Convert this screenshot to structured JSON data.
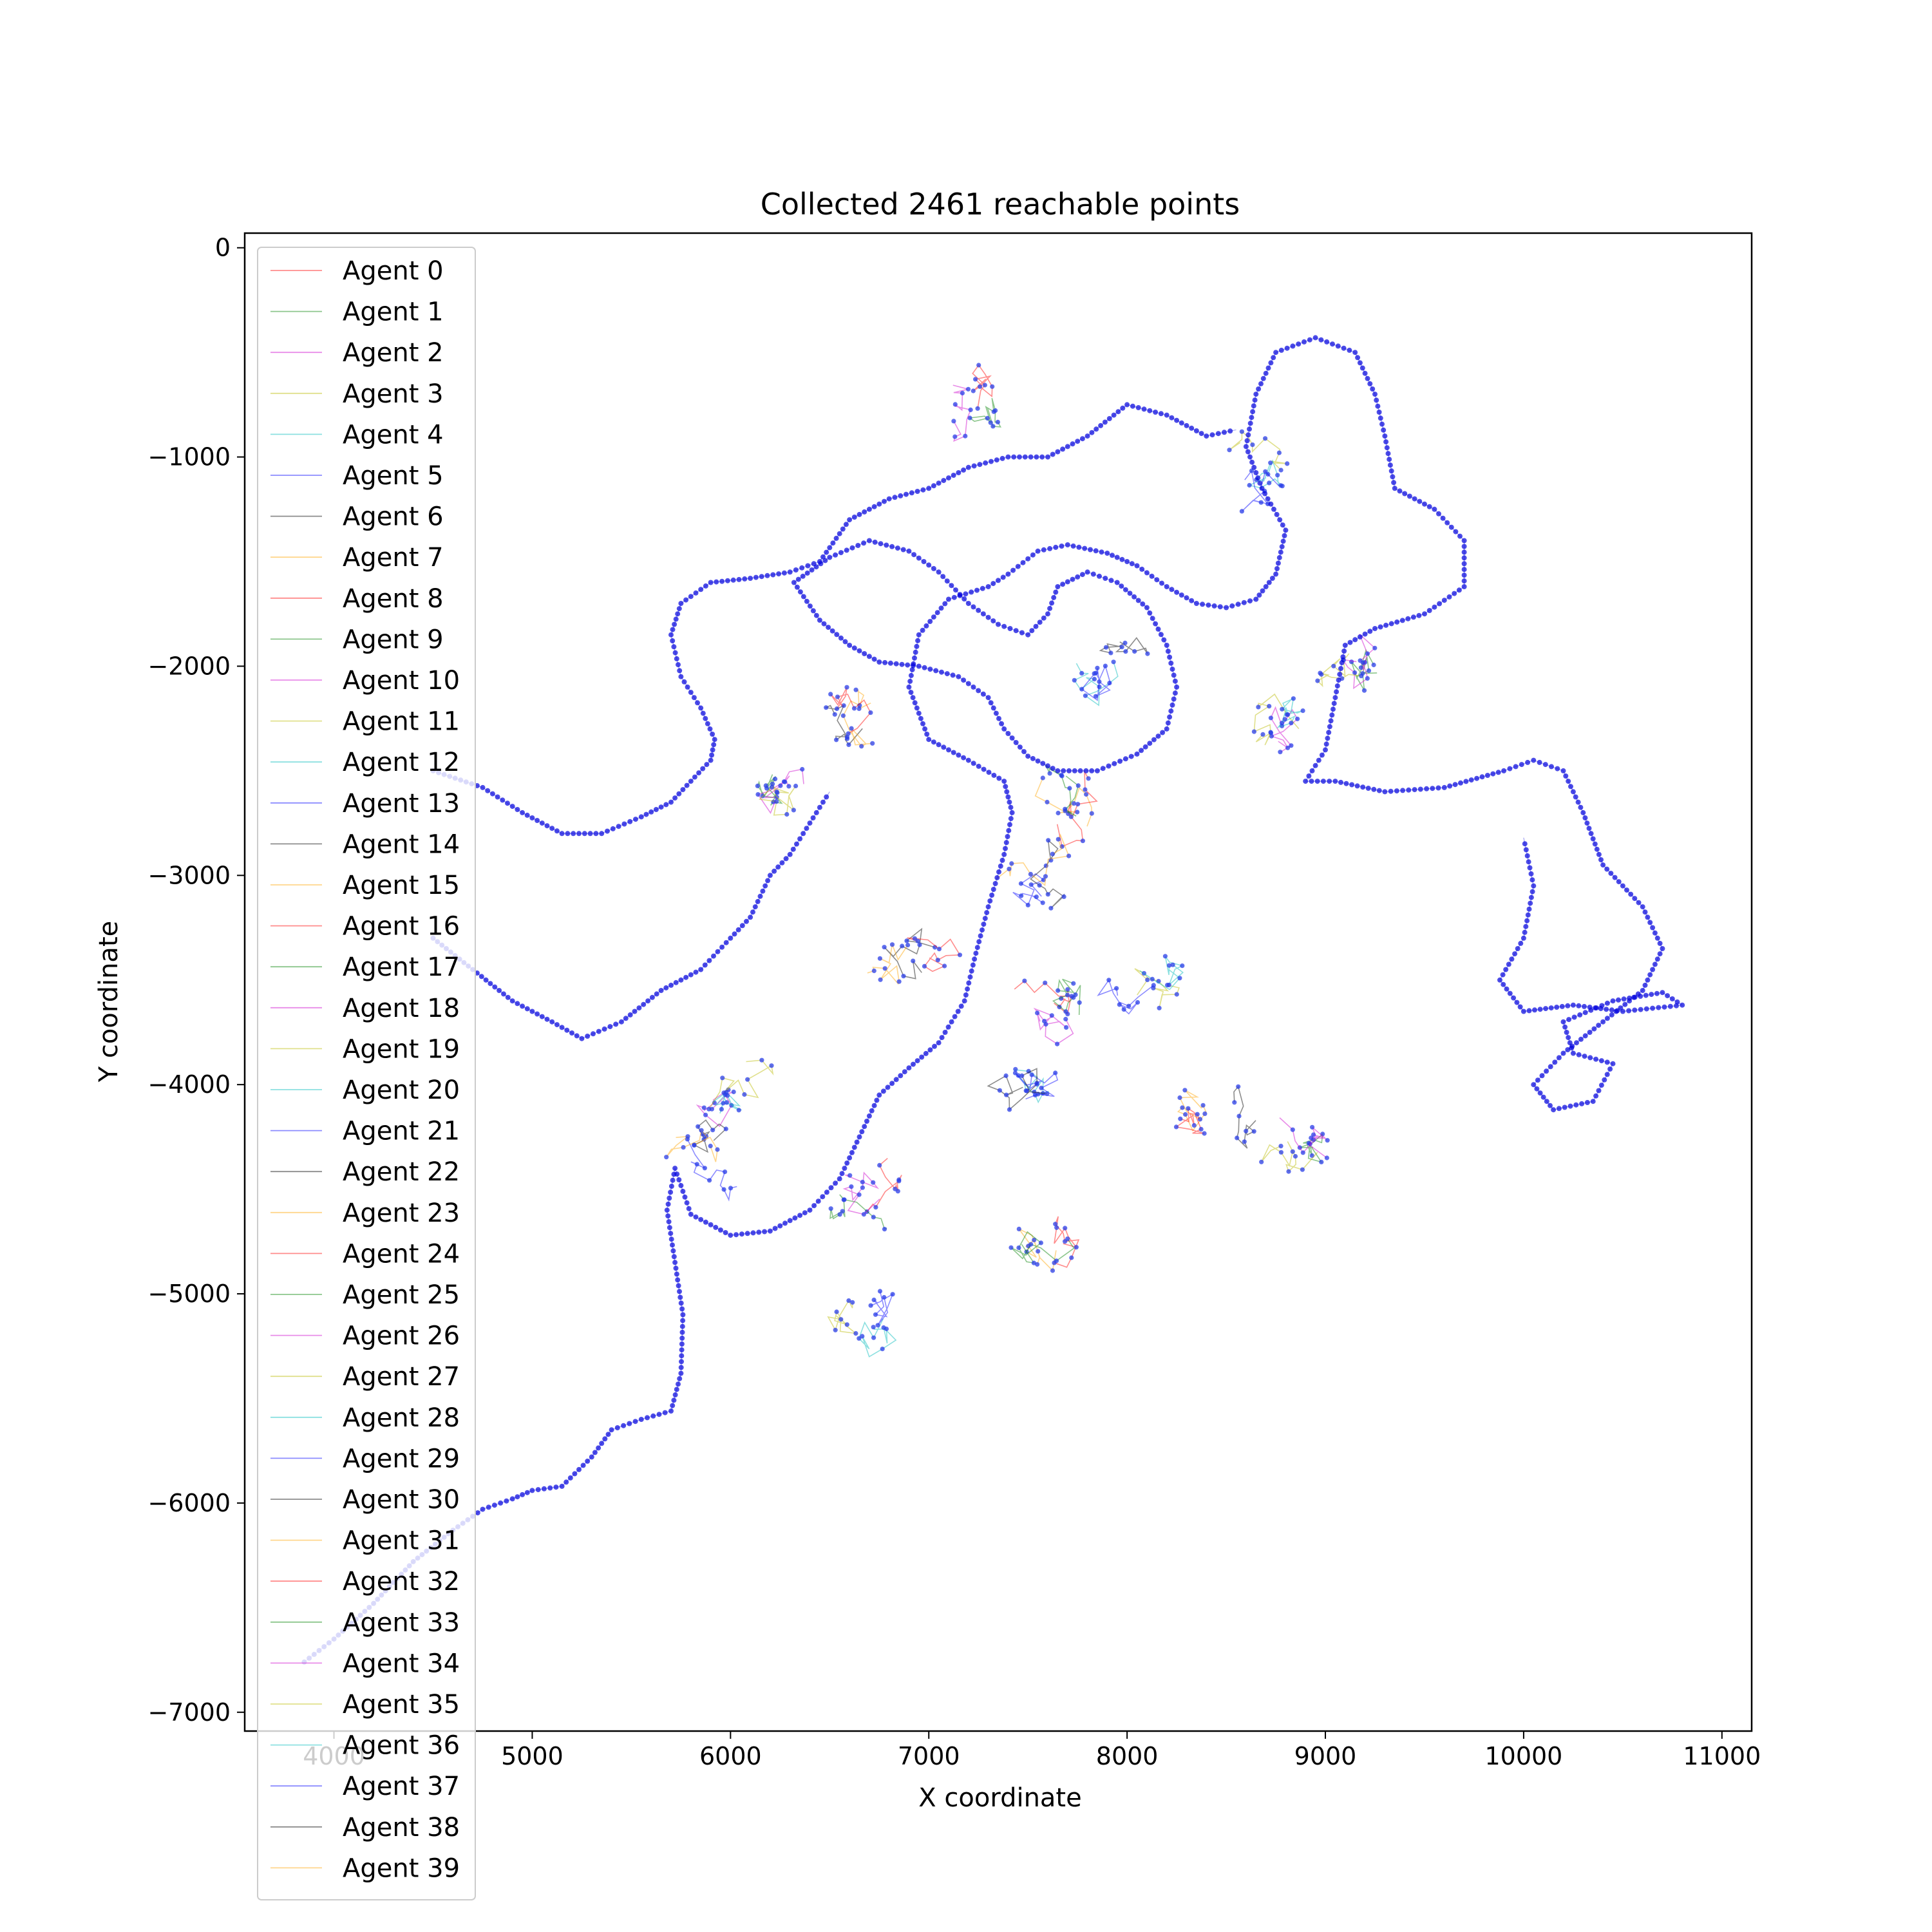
{
  "chart_data": {
    "type": "line",
    "title": "Collected 2461 reachable points",
    "xlabel": "X coordinate",
    "ylabel": "Y coordinate",
    "xlim": [
      3550,
      11150
    ],
    "ylim": [
      -7090,
      70
    ],
    "xticks": [
      4000,
      5000,
      6000,
      7000,
      8000,
      9000,
      10000,
      11000
    ],
    "yticks": [
      0,
      -1000,
      -2000,
      -3000,
      -4000,
      -5000,
      -6000,
      -7000
    ],
    "grid": false,
    "legend_position": "upper-left",
    "main_path": {
      "color": "#0000dd",
      "points": [
        [
          3850,
          -6760
        ],
        [
          4000,
          -6650
        ],
        [
          4200,
          -6480
        ],
        [
          4400,
          -6280
        ],
        [
          4600,
          -6130
        ],
        [
          4750,
          -6030
        ],
        [
          4900,
          -5980
        ],
        [
          5000,
          -5940
        ],
        [
          5150,
          -5920
        ],
        [
          5300,
          -5780
        ],
        [
          5400,
          -5650
        ],
        [
          5550,
          -5600
        ],
        [
          5700,
          -5560
        ],
        [
          5750,
          -5380
        ],
        [
          5760,
          -5100
        ],
        [
          5720,
          -4850
        ],
        [
          5680,
          -4600
        ],
        [
          5720,
          -4400
        ],
        [
          5800,
          -4620
        ],
        [
          6000,
          -4720
        ],
        [
          6200,
          -4700
        ],
        [
          6400,
          -4600
        ],
        [
          6550,
          -4450
        ],
        [
          6650,
          -4250
        ],
        [
          6750,
          -4050
        ],
        [
          6900,
          -3920
        ],
        [
          7050,
          -3800
        ],
        [
          7180,
          -3600
        ],
        [
          7230,
          -3400
        ],
        [
          7300,
          -3150
        ],
        [
          7380,
          -2900
        ],
        [
          7420,
          -2700
        ],
        [
          7380,
          -2550
        ],
        [
          7200,
          -2450
        ],
        [
          7000,
          -2350
        ],
        [
          6900,
          -2100
        ],
        [
          6950,
          -1850
        ],
        [
          7100,
          -1680
        ],
        [
          7300,
          -1620
        ],
        [
          7400,
          -1560
        ],
        [
          7550,
          -1450
        ],
        [
          7700,
          -1420
        ],
        [
          7900,
          -1460
        ],
        [
          8050,
          -1520
        ],
        [
          8200,
          -1620
        ],
        [
          8350,
          -1700
        ],
        [
          8500,
          -1720
        ],
        [
          8650,
          -1680
        ],
        [
          8750,
          -1560
        ],
        [
          8800,
          -1350
        ],
        [
          8680,
          -1150
        ],
        [
          8600,
          -950
        ],
        [
          8650,
          -700
        ],
        [
          8750,
          -500
        ],
        [
          8950,
          -430
        ],
        [
          9150,
          -500
        ],
        [
          9250,
          -700
        ],
        [
          9300,
          -900
        ],
        [
          9350,
          -1150
        ],
        [
          9550,
          -1250
        ],
        [
          9700,
          -1400
        ],
        [
          9700,
          -1620
        ],
        [
          9500,
          -1750
        ],
        [
          9250,
          -1820
        ],
        [
          9100,
          -1900
        ],
        [
          9050,
          -2150
        ],
        [
          9000,
          -2400
        ],
        [
          8900,
          -2550
        ],
        [
          9050,
          -2550
        ],
        [
          9300,
          -2600
        ],
        [
          9600,
          -2580
        ],
        [
          9900,
          -2500
        ],
        [
          10050,
          -2450
        ],
        [
          10200,
          -2500
        ],
        [
          10300,
          -2700
        ],
        [
          10400,
          -2950
        ],
        [
          10600,
          -3150
        ],
        [
          10700,
          -3350
        ],
        [
          10600,
          -3550
        ],
        [
          10400,
          -3700
        ],
        [
          10200,
          -3850
        ],
        [
          10050,
          -4000
        ],
        [
          10150,
          -4120
        ],
        [
          10350,
          -4080
        ],
        [
          10450,
          -3900
        ],
        [
          10250,
          -3850
        ],
        [
          10200,
          -3700
        ],
        [
          10450,
          -3600
        ],
        [
          10700,
          -3560
        ],
        [
          10800,
          -3620
        ],
        [
          10500,
          -3650
        ],
        [
          10250,
          -3620
        ],
        [
          10000,
          -3650
        ],
        [
          9880,
          -3500
        ],
        [
          10000,
          -3300
        ],
        [
          10050,
          -3050
        ],
        [
          10000,
          -2820
        ]
      ]
    },
    "loop_path": {
      "color": "#0000dd",
      "points": [
        [
          6320,
          -1600
        ],
        [
          6500,
          -1480
        ],
        [
          6700,
          -1400
        ],
        [
          6900,
          -1450
        ],
        [
          7050,
          -1550
        ],
        [
          7200,
          -1700
        ],
        [
          7350,
          -1800
        ],
        [
          7500,
          -1850
        ],
        [
          7600,
          -1750
        ],
        [
          7650,
          -1620
        ],
        [
          7800,
          -1550
        ],
        [
          7950,
          -1600
        ],
        [
          8100,
          -1720
        ],
        [
          8200,
          -1900
        ],
        [
          8250,
          -2100
        ],
        [
          8200,
          -2300
        ],
        [
          8050,
          -2420
        ],
        [
          7850,
          -2500
        ],
        [
          7650,
          -2500
        ],
        [
          7500,
          -2430
        ],
        [
          7380,
          -2300
        ],
        [
          7300,
          -2150
        ],
        [
          7150,
          -2050
        ],
        [
          6950,
          -2000
        ],
        [
          6750,
          -1980
        ],
        [
          6600,
          -1900
        ],
        [
          6450,
          -1780
        ],
        [
          6320,
          -1600
        ]
      ]
    },
    "west_path": {
      "color": "#0000dd",
      "points": [
        [
          4500,
          -2500
        ],
        [
          4750,
          -2580
        ],
        [
          4950,
          -2700
        ],
        [
          5150,
          -2800
        ],
        [
          5350,
          -2800
        ],
        [
          5550,
          -2720
        ],
        [
          5700,
          -2650
        ],
        [
          5800,
          -2550
        ],
        [
          5900,
          -2450
        ],
        [
          5920,
          -2350
        ],
        [
          5850,
          -2200
        ],
        [
          5750,
          -2050
        ],
        [
          5700,
          -1850
        ],
        [
          5750,
          -1700
        ],
        [
          5900,
          -1600
        ],
        [
          6100,
          -1580
        ],
        [
          6300,
          -1550
        ],
        [
          6450,
          -1500
        ],
        [
          6600,
          -1300
        ],
        [
          6800,
          -1200
        ],
        [
          7000,
          -1150
        ],
        [
          7200,
          -1050
        ],
        [
          7400,
          -1000
        ],
        [
          7600,
          -1000
        ],
        [
          7800,
          -900
        ],
        [
          8000,
          -750
        ],
        [
          8200,
          -800
        ],
        [
          8400,
          -900
        ],
        [
          8550,
          -870
        ]
      ]
    },
    "southwest_path": {
      "color": "#0000dd",
      "points": [
        [
          4500,
          -3300
        ],
        [
          4700,
          -3450
        ],
        [
          4900,
          -3600
        ],
        [
          5100,
          -3700
        ],
        [
          5250,
          -3780
        ],
        [
          5450,
          -3700
        ],
        [
          5650,
          -3550
        ],
        [
          5850,
          -3450
        ],
        [
          6000,
          -3300
        ],
        [
          6100,
          -3200
        ],
        [
          6200,
          -3000
        ],
        [
          6300,
          -2900
        ],
        [
          6400,
          -2750
        ],
        [
          6500,
          -2600
        ]
      ]
    },
    "series": [
      {
        "name": "Agent 0",
        "color": "#ff0000"
      },
      {
        "name": "Agent 1",
        "color": "#008000"
      },
      {
        "name": "Agent 2",
        "color": "#cc00cc"
      },
      {
        "name": "Agent 3",
        "color": "#bbbb00"
      },
      {
        "name": "Agent 4",
        "color": "#00bbbb"
      },
      {
        "name": "Agent 5",
        "color": "#0000ff"
      },
      {
        "name": "Agent 6",
        "color": "#000000"
      },
      {
        "name": "Agent 7",
        "color": "#ffa500"
      },
      {
        "name": "Agent 8",
        "color": "#ff0000"
      },
      {
        "name": "Agent 9",
        "color": "#008000"
      },
      {
        "name": "Agent 10",
        "color": "#cc00cc"
      },
      {
        "name": "Agent 11",
        "color": "#bbbb00"
      },
      {
        "name": "Agent 12",
        "color": "#00bbbb"
      },
      {
        "name": "Agent 13",
        "color": "#0000ff"
      },
      {
        "name": "Agent 14",
        "color": "#000000"
      },
      {
        "name": "Agent 15",
        "color": "#ffa500"
      },
      {
        "name": "Agent 16",
        "color": "#ff0000"
      },
      {
        "name": "Agent 17",
        "color": "#008000"
      },
      {
        "name": "Agent 18",
        "color": "#cc00cc"
      },
      {
        "name": "Agent 19",
        "color": "#bbbb00"
      },
      {
        "name": "Agent 20",
        "color": "#00bbbb"
      },
      {
        "name": "Agent 21",
        "color": "#0000ff"
      },
      {
        "name": "Agent 22",
        "color": "#000000"
      },
      {
        "name": "Agent 23",
        "color": "#ffa500"
      },
      {
        "name": "Agent 24",
        "color": "#ff0000"
      },
      {
        "name": "Agent 25",
        "color": "#008000"
      },
      {
        "name": "Agent 26",
        "color": "#cc00cc"
      },
      {
        "name": "Agent 27",
        "color": "#bbbb00"
      },
      {
        "name": "Agent 28",
        "color": "#00bbbb"
      },
      {
        "name": "Agent 29",
        "color": "#0000ff"
      },
      {
        "name": "Agent 30",
        "color": "#000000"
      },
      {
        "name": "Agent 31",
        "color": "#ffa500"
      },
      {
        "name": "Agent 32",
        "color": "#ff0000"
      },
      {
        "name": "Agent 33",
        "color": "#008000"
      },
      {
        "name": "Agent 34",
        "color": "#cc00cc"
      },
      {
        "name": "Agent 35",
        "color": "#bbbb00"
      },
      {
        "name": "Agent 36",
        "color": "#00bbbb"
      },
      {
        "name": "Agent 37",
        "color": "#0000ff"
      },
      {
        "name": "Agent 38",
        "color": "#000000"
      },
      {
        "name": "Agent 39",
        "color": "#ffa500"
      }
    ],
    "agent_clusters": [
      {
        "center": [
          7200,
          -700
        ],
        "spread": [
          300,
          350
        ]
      },
      {
        "center": [
          8700,
          -1100
        ],
        "spread": [
          250,
          200
        ]
      },
      {
        "center": [
          6600,
          -2300
        ],
        "spread": [
          300,
          300
        ]
      },
      {
        "center": [
          6200,
          -2600
        ],
        "spread": [
          200,
          150
        ]
      },
      {
        "center": [
          7900,
          -2000
        ],
        "spread": [
          350,
          300
        ]
      },
      {
        "center": [
          7700,
          -2600
        ],
        "spread": [
          350,
          200
        ]
      },
      {
        "center": [
          8700,
          -2300
        ],
        "spread": [
          250,
          300
        ]
      },
      {
        "center": [
          7500,
          -3000
        ],
        "spread": [
          300,
          300
        ]
      },
      {
        "center": [
          7700,
          -3600
        ],
        "spread": [
          350,
          300
        ]
      },
      {
        "center": [
          8100,
          -3500
        ],
        "spread": [
          300,
          250
        ]
      },
      {
        "center": [
          8400,
          -4200
        ],
        "spread": [
          300,
          250
        ]
      },
      {
        "center": [
          8900,
          -4300
        ],
        "spread": [
          250,
          300
        ]
      },
      {
        "center": [
          7500,
          -4000
        ],
        "spread": [
          300,
          300
        ]
      },
      {
        "center": [
          7600,
          -4700
        ],
        "spread": [
          300,
          350
        ]
      },
      {
        "center": [
          6000,
          -4000
        ],
        "spread": [
          300,
          250
        ]
      },
      {
        "center": [
          5800,
          -4300
        ],
        "spread": [
          200,
          100
        ]
      },
      {
        "center": [
          6700,
          -4500
        ],
        "spread": [
          300,
          250
        ]
      },
      {
        "center": [
          6700,
          -5100
        ],
        "spread": [
          250,
          250
        ]
      },
      {
        "center": [
          6900,
          -3400
        ],
        "spread": [
          300,
          200
        ]
      },
      {
        "center": [
          9200,
          -2000
        ],
        "spread": [
          100,
          150
        ]
      }
    ]
  }
}
